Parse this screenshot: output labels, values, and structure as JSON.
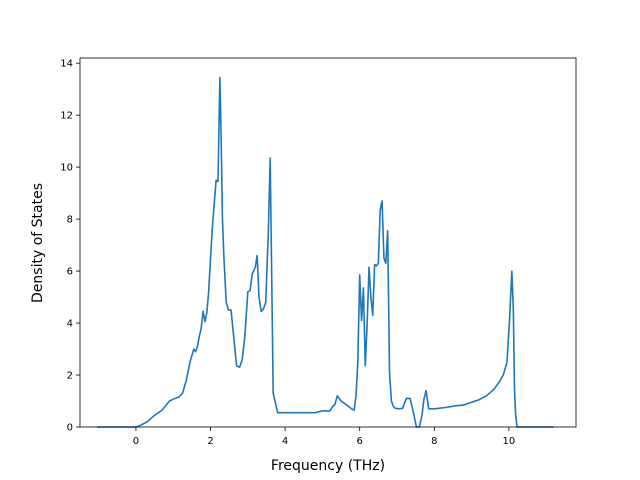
{
  "chart_data": {
    "type": "line",
    "title": "",
    "xlabel": "Frequency (THz)",
    "ylabel": "Density of States",
    "xlim": [
      -1.5,
      11.8
    ],
    "ylim": [
      0,
      14.2
    ],
    "xticks": [
      0,
      2,
      4,
      6,
      8,
      10
    ],
    "yticks": [
      0,
      2,
      4,
      6,
      8,
      10,
      12,
      14
    ],
    "grid": false,
    "legend": "none",
    "series": [
      {
        "color": "#1f77b4",
        "x": [
          -1.04,
          0.0,
          0.1,
          0.3,
          0.5,
          0.7,
          0.9,
          1.05,
          1.15,
          1.25,
          1.35,
          1.45,
          1.5,
          1.55,
          1.6,
          1.65,
          1.7,
          1.75,
          1.8,
          1.85,
          1.9,
          1.95,
          2.0,
          2.05,
          2.1,
          2.15,
          2.2,
          2.25,
          2.28,
          2.32,
          2.36,
          2.42,
          2.48,
          2.55,
          2.62,
          2.7,
          2.78,
          2.85,
          2.92,
          3.0,
          3.06,
          3.12,
          3.2,
          3.25,
          3.3,
          3.36,
          3.42,
          3.48,
          3.55,
          3.6,
          3.63,
          3.68,
          3.8,
          4.2,
          4.8,
          5.0,
          5.1,
          5.2,
          5.28,
          5.33,
          5.4,
          5.5,
          5.6,
          5.7,
          5.78,
          5.85,
          5.9,
          5.95,
          6.0,
          6.05,
          6.1,
          6.15,
          6.2,
          6.25,
          6.3,
          6.35,
          6.4,
          6.45,
          6.5,
          6.55,
          6.6,
          6.65,
          6.7,
          6.75,
          6.8,
          6.85,
          6.9,
          6.95,
          7.05,
          7.15,
          7.25,
          7.35,
          7.45,
          7.52,
          7.6,
          7.67,
          7.72,
          7.78,
          7.85,
          8.0,
          8.3,
          8.6,
          8.8,
          9.0,
          9.2,
          9.4,
          9.6,
          9.75,
          9.85,
          9.95,
          10.02,
          10.08,
          10.12,
          10.15,
          10.18,
          10.22,
          11.2
        ],
        "y": [
          0.0,
          0.0,
          0.05,
          0.2,
          0.45,
          0.65,
          1.0,
          1.1,
          1.15,
          1.3,
          1.8,
          2.5,
          2.75,
          3.0,
          2.9,
          3.1,
          3.5,
          3.8,
          4.45,
          4.05,
          4.4,
          5.2,
          6.5,
          7.7,
          8.6,
          9.5,
          9.45,
          13.45,
          11.5,
          8.0,
          6.5,
          4.8,
          4.5,
          4.5,
          3.5,
          2.35,
          2.3,
          2.6,
          3.5,
          5.2,
          5.25,
          5.9,
          6.15,
          6.6,
          5.0,
          4.45,
          4.55,
          4.8,
          7.5,
          10.35,
          7.0,
          1.3,
          0.55,
          0.55,
          0.55,
          0.62,
          0.62,
          0.62,
          0.8,
          0.85,
          1.2,
          1.0,
          0.9,
          0.8,
          0.7,
          0.65,
          1.2,
          2.5,
          5.85,
          4.1,
          5.35,
          2.35,
          4.0,
          6.15,
          5.0,
          4.3,
          6.25,
          6.2,
          6.3,
          8.35,
          8.7,
          6.5,
          6.3,
          7.55,
          2.1,
          1.0,
          0.8,
          0.72,
          0.7,
          0.72,
          1.1,
          1.1,
          0.5,
          0.0,
          0.0,
          0.45,
          1.05,
          1.4,
          0.7,
          0.7,
          0.75,
          0.82,
          0.85,
          0.95,
          1.05,
          1.2,
          1.45,
          1.75,
          2.0,
          2.5,
          4.2,
          6.0,
          4.5,
          1.5,
          0.5,
          0.0,
          0.0
        ]
      }
    ]
  }
}
